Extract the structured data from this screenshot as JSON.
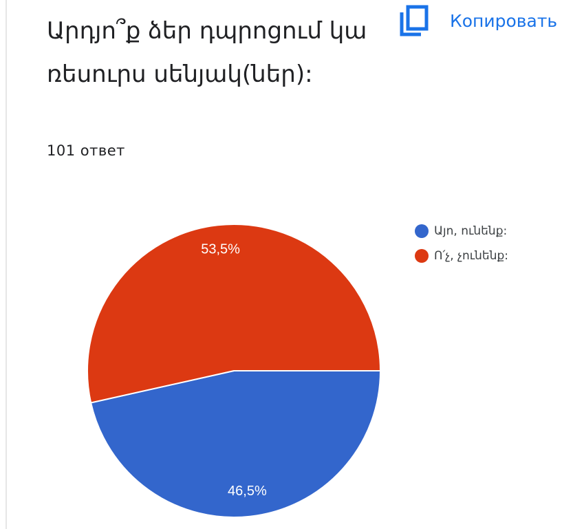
{
  "question": {
    "title": "Արդյո՞ք ձեր դպրոցում կա ռեսուրս սենյակ(ներ):",
    "response_count": "101 ответ"
  },
  "toolbar": {
    "copy_label": "Копировать",
    "copy_icon": "copy-icon"
  },
  "chart_data": {
    "type": "pie",
    "categories": [
      "Այո, ունենք:",
      "Ո՛չ, չունենք:"
    ],
    "values": [
      46.5,
      53.5
    ],
    "value_labels": [
      "46,5%",
      "53,5%"
    ],
    "colors": [
      "#3366cc",
      "#dc3912"
    ],
    "legend_position": "right"
  }
}
